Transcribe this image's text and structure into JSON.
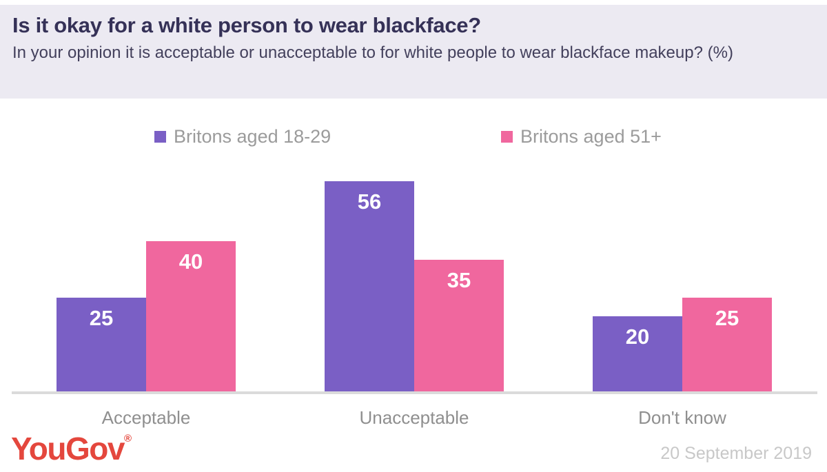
{
  "header": {
    "title": "Is it okay for a white person to wear blackface?",
    "subtitle": "In your opinion it is acceptable or unacceptable to for white people to wear blackface makeup? (%)"
  },
  "chart_data": {
    "type": "bar",
    "title": "Is it okay for a white person to wear blackface?",
    "subtitle": "In your opinion it is acceptable or unacceptable to for white people to wear blackface makeup? (%)",
    "categories": [
      "Acceptable",
      "Unacceptable",
      "Don't know"
    ],
    "series": [
      {
        "name": "Britons aged 18-29",
        "color": "#7A5FC5",
        "values": [
          25,
          56,
          20
        ]
      },
      {
        "name": "Britons aged 51+",
        "color": "#F0679E",
        "values": [
          40,
          35,
          25
        ]
      }
    ],
    "value_unit": "%",
    "ylim": [
      0,
      60
    ],
    "grid": false,
    "y_axis_visible": false,
    "legend_position": "top",
    "data_labels": "inside-top-white"
  },
  "footer": {
    "brand": "YouGov",
    "brand_registered": "®",
    "date": "20 September 2019"
  },
  "colors": {
    "header_bg": "#ECEAF2",
    "title_text": "#353157",
    "subtitle_text": "#43405C",
    "legend_text": "#9B9B9B",
    "category_text": "#8F8F8F",
    "baseline": "#DBDBDB",
    "bar_label_text": "#FFFFFF",
    "date_text": "#C8C8C8",
    "brand_red": "#E4473D"
  }
}
